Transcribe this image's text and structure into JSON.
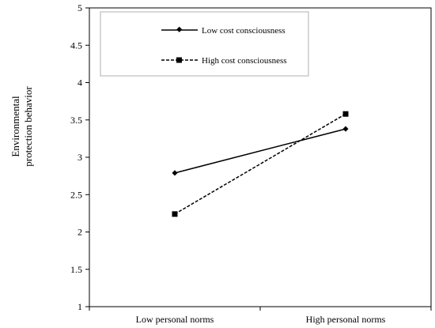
{
  "chart_data": {
    "type": "line",
    "title": "",
    "ylabel_lines": [
      "Environmental",
      "protection behavior"
    ],
    "xlabel": "",
    "categories": [
      "Low personal norms",
      "High personal norms"
    ],
    "ylim": [
      1,
      5
    ],
    "yticks": [
      "1",
      "1.5",
      "2",
      "2.5",
      "3",
      "3.5",
      "4",
      "4.5",
      "5"
    ],
    "grid": false,
    "legend_position": "top-left",
    "series": [
      {
        "name": "Low cost consciousness",
        "values": [
          2.79,
          3.38
        ],
        "line_style": "solid",
        "marker": "diamond",
        "color": "#000000"
      },
      {
        "name": "High cost consciousness",
        "values": [
          2.24,
          3.58
        ],
        "line_style": "dashed",
        "marker": "square",
        "color": "#000000"
      }
    ]
  }
}
